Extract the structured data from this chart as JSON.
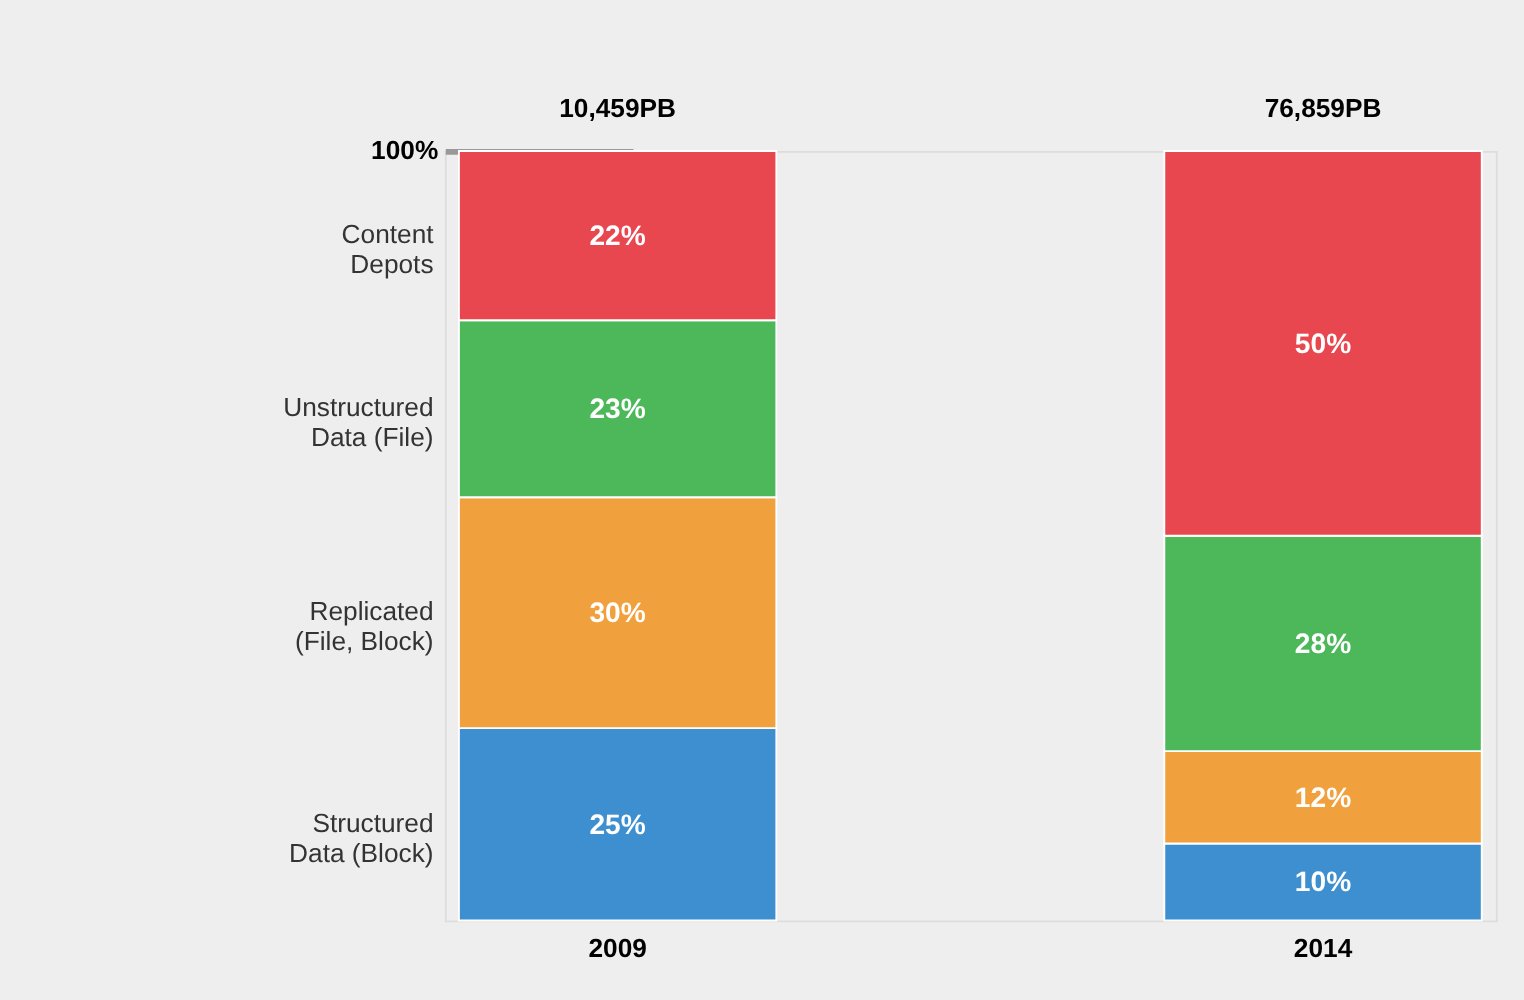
{
  "chart_data": {
    "type": "bar",
    "stacked": true,
    "categories": [
      "2009",
      "2014"
    ],
    "series": [
      {
        "name": "Structured\nData (Block)",
        "color": "#3d8fd0",
        "values": [
          25,
          10
        ],
        "value_labels": [
          "25%",
          "10%"
        ]
      },
      {
        "name": "Replicated\n(File, Block)",
        "color": "#f0a03c",
        "values": [
          30,
          12
        ],
        "value_labels": [
          "30%",
          "12%"
        ]
      },
      {
        "name": "Unstructured\nData (File)",
        "color": "#4cb85a",
        "values": [
          23,
          28
        ],
        "value_labels": [
          "23%",
          "28%"
        ]
      },
      {
        "name": "Content\nDepots",
        "color": "#e8474f",
        "values": [
          22,
          50
        ],
        "value_labels": [
          "22%",
          "50%"
        ]
      }
    ],
    "ylim": [
      0,
      100
    ],
    "yticks": [
      {
        "value": 100,
        "label": "100%"
      }
    ],
    "annotations": [
      "10,459PB",
      "76,859PB"
    ],
    "grid": false
  }
}
